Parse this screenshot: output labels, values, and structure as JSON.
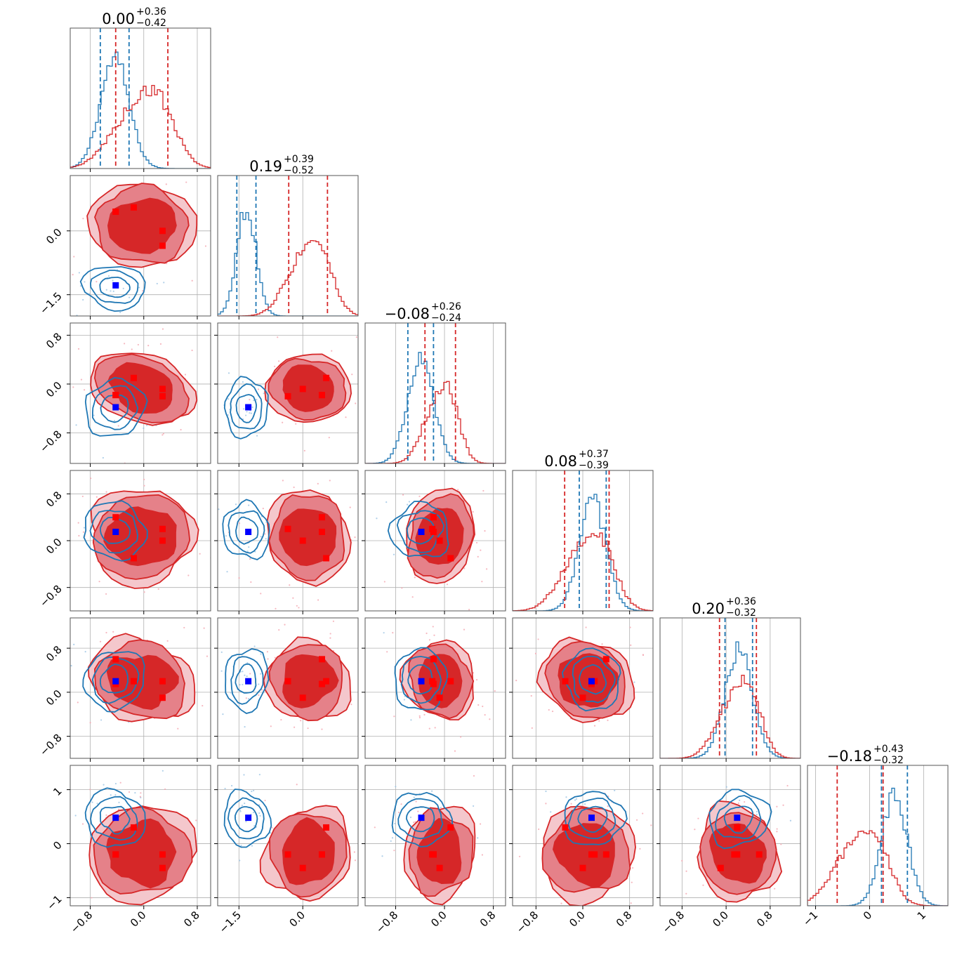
{
  "chart_data": {
    "type": "corner",
    "n_params": 6,
    "colors": {
      "red": "#d62728",
      "blue": "#1f77b4",
      "grid": "#b0b0b0"
    },
    "axis_ranges": [
      [
        -1.1,
        1.0
      ],
      [
        -2.0,
        1.3
      ],
      [
        -1.3,
        1.0
      ],
      [
        -1.2,
        1.2
      ],
      [
        -1.2,
        1.35
      ],
      [
        -1.15,
        1.45
      ]
    ],
    "tick_values": [
      [
        -0.8,
        0.0,
        0.8
      ],
      [
        -1.5,
        0.0
      ],
      [
        -0.8,
        0.0,
        0.8
      ],
      [
        -0.8,
        0.0,
        0.8
      ],
      [
        -0.8,
        0.0,
        0.8
      ],
      [
        -1,
        0,
        1
      ]
    ],
    "x_tick_labels": [
      [
        "−0.8",
        "0.0",
        "0.8"
      ],
      [
        "−1.5",
        "0.0"
      ],
      [
        "−0.8",
        "0.0",
        "0.8"
      ],
      [
        "−0.8",
        "0.0",
        "0.8"
      ],
      [
        "−0.8",
        "0.0",
        "0.8"
      ],
      [
        "−1",
        "0",
        "1"
      ]
    ],
    "y_tick_labels": [
      [],
      [
        "0.0",
        "−1.5"
      ],
      [
        "0.8",
        "0.0",
        "−0.8"
      ],
      [
        "0.8",
        "0.0",
        "−0.8"
      ],
      [
        "0.8",
        "0.0",
        "−0.8"
      ],
      [
        "1",
        "0",
        "−1"
      ]
    ],
    "titles": [
      {
        "value": "0.00",
        "plus": "+0.36",
        "minus": "−0.42"
      },
      {
        "value": "0.19",
        "plus": "+0.39",
        "minus": "−0.52"
      },
      {
        "value": "−0.08",
        "plus": "+0.26",
        "minus": "−0.24"
      },
      {
        "value": "0.08",
        "plus": "+0.37",
        "minus": "−0.39"
      },
      {
        "value": "0.20",
        "plus": "+0.36",
        "minus": "−0.32"
      },
      {
        "value": "−0.18",
        "plus": "+0.43",
        "minus": "−0.32"
      }
    ],
    "series": [
      {
        "color": "red",
        "quantiles": [
          [
            -0.42,
            0.36
          ],
          [
            -0.33,
            0.58
          ],
          [
            -0.32,
            0.18
          ],
          [
            -0.31,
            0.45
          ],
          [
            -0.12,
            0.55
          ],
          [
            -0.6,
            0.25
          ]
        ]
      },
      {
        "color": "blue",
        "quantiles": [
          [
            -0.65,
            -0.22
          ],
          [
            -1.55,
            -1.1
          ],
          [
            -0.6,
            -0.18
          ],
          [
            -0.06,
            0.4
          ],
          [
            -0.02,
            0.48
          ],
          [
            0.22,
            0.7
          ]
        ]
      }
    ],
    "blue_marker": [
      -0.42,
      -1.28,
      -0.38,
      0.15,
      0.2,
      0.48
    ],
    "red_markers": [
      [
        -0.42,
        0.45,
        -0.18,
        0.4,
        0.6,
        -0.2
      ],
      [
        -0.15,
        0.55,
        0.1,
        -0.3,
        0.2,
        0.3
      ],
      [
        0.28,
        0.0,
        -0.08,
        0.0,
        -0.1,
        -0.45
      ],
      [
        0.28,
        -0.35,
        -0.2,
        0.2,
        0.2,
        -0.2
      ],
      [
        -0.42,
        0.45,
        -0.18,
        0.15,
        0.15,
        -0.2
      ]
    ]
  }
}
